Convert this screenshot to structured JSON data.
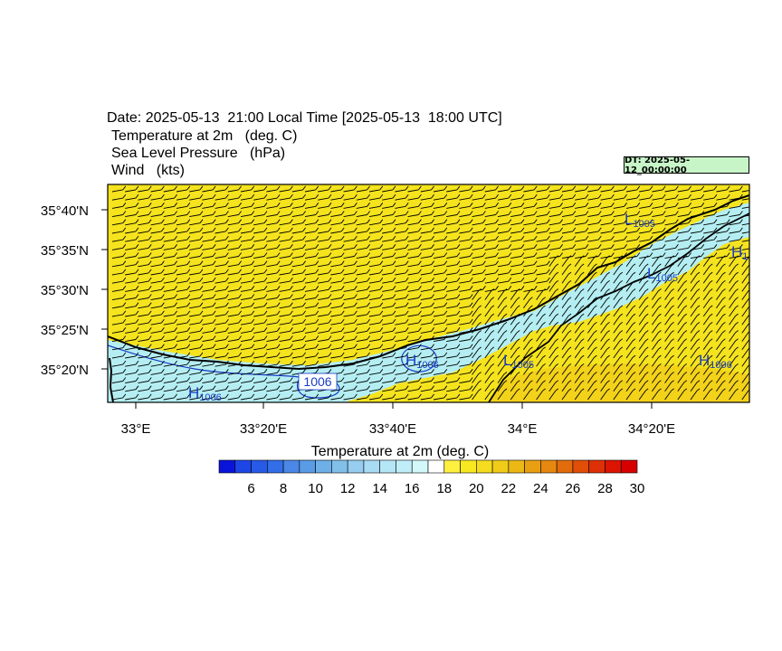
{
  "header": {
    "date_line": "Date: 2025-05-13  21:00 Local Time [2025-05-13  18:00 UTC]",
    "variables": [
      "Temperature at 2m   (deg. C)",
      "Sea Level Pressure   (hPa)",
      "Wind   (kts)"
    ]
  },
  "dt_label": "DT: 2025-05-12_00:00:00",
  "map": {
    "lat_labels": [
      "35°40'N",
      "35°35'N",
      "35°30'N",
      "35°25'N",
      "35°20'N"
    ],
    "lon_labels": [
      "33°E",
      "33°20'E",
      "33°40'E",
      "34°E",
      "34°20'E"
    ],
    "pressure_labels": [
      {
        "letter": "L",
        "sub": "1005"
      },
      {
        "letter": "H",
        "sub": "1"
      },
      {
        "letter": "L",
        "sub": "1005"
      },
      {
        "letter": "H",
        "sub": "1006"
      },
      {
        "letter": "L",
        "sub": "1005"
      },
      {
        "letter": "H",
        "sub": "1006"
      },
      {
        "letter": "H",
        "sub": "1006"
      }
    ],
    "isobar_label": "1006",
    "colors": {
      "land_warm": "#f5e31e",
      "sea_cool": "#b4eef2",
      "darker_warm": "#f2cf1a",
      "isobar": "#1a3cc8",
      "coast": "#000000"
    }
  },
  "colorbar": {
    "title": "Temperature at 2m  (deg. C)",
    "colors": [
      "#0a14d8",
      "#1e46e6",
      "#285ae8",
      "#326ee8",
      "#4b87e6",
      "#5a9be6",
      "#6eafe8",
      "#82c0ea",
      "#96cdf0",
      "#a8dbf4",
      "#b4e6f6",
      "#c0eef8",
      "#d2f8fa",
      "#ffffff",
      "#fff040",
      "#f8e820",
      "#f5dc1e",
      "#f0cc18",
      "#ecb814",
      "#e8a012",
      "#e68810",
      "#e26c0c",
      "#e04e08",
      "#de3006",
      "#dc1404",
      "#d60000"
    ],
    "tick_labels": [
      "6",
      "8",
      "10",
      "12",
      "14",
      "16",
      "18",
      "20",
      "22",
      "24",
      "26",
      "28",
      "30"
    ]
  }
}
